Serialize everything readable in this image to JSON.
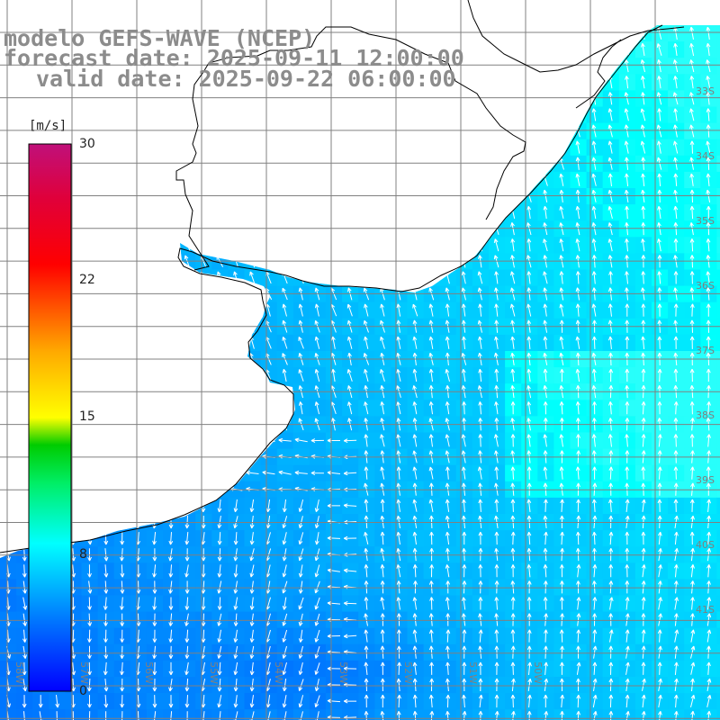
{
  "header": {
    "line1": "modelo GEFS-WAVE (NCEP)",
    "line2": "forecast date: 2025-09-11 12:00:00",
    "line3": "valid date: 2025-09-22 06:00:00"
  },
  "colorbar": {
    "unit": "[m/s]",
    "ticks": [
      {
        "value": 30,
        "label": "30"
      },
      {
        "value": 22,
        "label": "22"
      },
      {
        "value": 15,
        "label": "15"
      },
      {
        "value": 8,
        "label": "8"
      },
      {
        "value": 0,
        "label": "0"
      }
    ],
    "colors": [
      "#0000ff",
      "#00aaff",
      "#00ffff",
      "#00ff55",
      "#00cc00",
      "#aadd00",
      "#ffff00",
      "#ffaa00",
      "#ff5500",
      "#ff0000",
      "#dd0044",
      "#cc0066",
      "#c0107a"
    ]
  },
  "lat_labels": [
    "33S",
    "34S",
    "35S",
    "36S",
    "37S",
    "38S",
    "39S",
    "40S",
    "41S"
  ],
  "lon_labels": [
    "58W",
    "57W",
    "56W",
    "55W",
    "54W",
    "53W",
    "52W",
    "51W",
    "50W"
  ],
  "colors": {
    "land": "#ffffff",
    "coast": "#000000",
    "grid": "#808080",
    "arrow": "#ffffff",
    "title": "#8c8c8c"
  }
}
